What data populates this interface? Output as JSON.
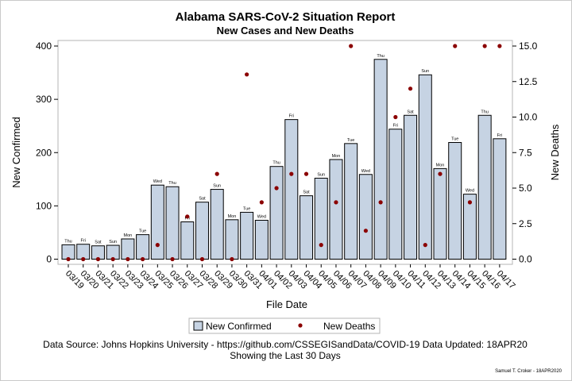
{
  "header": {
    "title": "Alabama SARS-CoV-2 Situation Report",
    "subtitle": "New Cases and New Deaths"
  },
  "footer": {
    "source": "Data Source: Johns Hopkins University - https://github.com/CSSEGISandData/COVID-19 Data Updated: 18APR20",
    "period": "Showing the Last 30 Days",
    "signature": "Samuel T. Croker - 18APR2020"
  },
  "legend": {
    "confirmed_label": "New Confirmed",
    "deaths_label": "New Deaths"
  },
  "colors": {
    "bar_fill": "#c6d3e3",
    "bar_stroke": "#000000",
    "death_marker": "#8b0000"
  },
  "chart_data": {
    "type": "bar",
    "xlabel": "File Date",
    "ylabel": "New Confirmed",
    "y2label": "New Deaths",
    "ylim": [
      0,
      400
    ],
    "y2lim": [
      0,
      15
    ],
    "yticks": [
      0,
      100,
      200,
      300,
      400
    ],
    "y2ticks": [
      "0.0",
      "2.5",
      "5.0",
      "7.5",
      "10.0",
      "12.5",
      "15.0"
    ],
    "categories": [
      "03/19",
      "03/20",
      "03/21",
      "03/22",
      "03/23",
      "03/24",
      "03/25",
      "03/26",
      "03/27",
      "03/28",
      "03/29",
      "03/30",
      "03/31",
      "04/01",
      "04/02",
      "04/03",
      "04/04",
      "04/05",
      "04/06",
      "04/07",
      "04/08",
      "04/09",
      "04/10",
      "04/11",
      "04/12",
      "04/13",
      "04/14",
      "04/15",
      "04/16",
      "04/17"
    ],
    "weekdays": [
      "Thu",
      "Fri",
      "Sat",
      "Sun",
      "Mon",
      "Tue",
      "Wed",
      "Thu",
      "Fri",
      "Sat",
      "Sun",
      "Mon",
      "Tue",
      "Wed",
      "Thu",
      "Fri",
      "Sat",
      "Sun",
      "Mon",
      "Tue",
      "Wed",
      "Thu",
      "Fri",
      "Sat",
      "Sun",
      "Mon",
      "Tue",
      "Wed",
      "Thu",
      "Fri"
    ],
    "series": [
      {
        "name": "New Confirmed",
        "kind": "bar",
        "axis": "left",
        "values": [
          27,
          28,
          25,
          26,
          38,
          46,
          139,
          136,
          70,
          107,
          131,
          74,
          88,
          73,
          174,
          262,
          119,
          152,
          187,
          217,
          159,
          375,
          244,
          270,
          346,
          170,
          219,
          122,
          270,
          226
        ]
      },
      {
        "name": "New Deaths",
        "kind": "scatter",
        "axis": "right",
        "values": [
          0,
          0,
          0,
          0,
          0,
          0,
          1,
          0,
          3,
          0,
          6,
          0,
          13,
          4,
          5,
          6,
          6,
          1,
          4,
          15,
          2,
          4,
          10,
          12,
          1,
          6,
          15,
          4,
          15,
          15
        ]
      }
    ]
  }
}
